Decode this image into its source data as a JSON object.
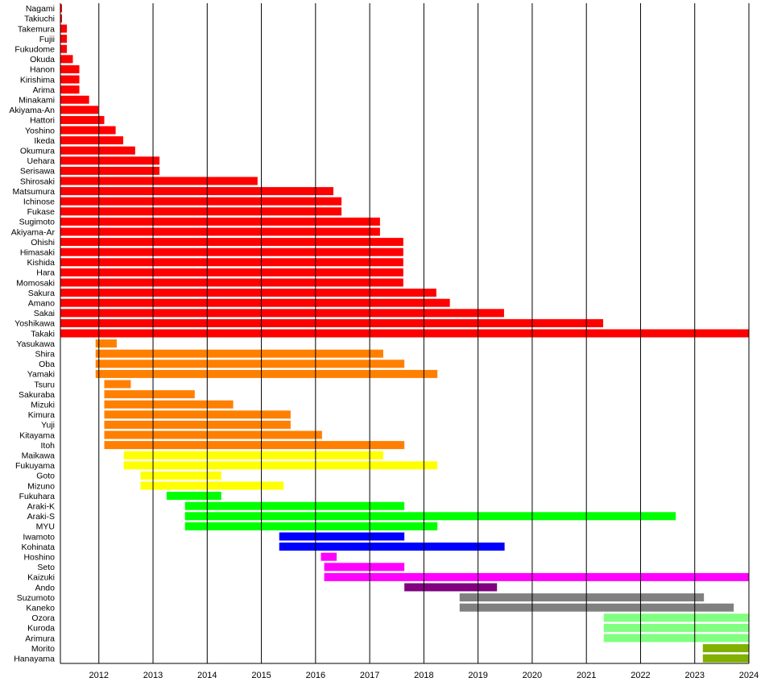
{
  "chart_data": {
    "type": "bar",
    "orientation": "horizontal-timeline",
    "title": "",
    "xlabel": "",
    "ylabel": "",
    "xlim": [
      2011.29,
      2024.0
    ],
    "xticks": [
      "2012",
      "2013",
      "2014",
      "2015",
      "2016",
      "2017",
      "2018",
      "2019",
      "2020",
      "2021",
      "2022",
      "2023",
      "2024"
    ],
    "grid": "vertical lines at each year",
    "legend": "none",
    "groups": [
      {
        "color": "#ff0000",
        "rows": [
          {
            "label": "Nagami",
            "start": 2011.29,
            "end": 2011.32
          },
          {
            "label": "Takiuchi",
            "start": 2011.29,
            "end": 2011.32
          },
          {
            "label": "Takemura",
            "start": 2011.29,
            "end": 2011.41
          },
          {
            "label": "Fujii",
            "start": 2011.29,
            "end": 2011.41
          },
          {
            "label": "Fukudome",
            "start": 2011.29,
            "end": 2011.41
          },
          {
            "label": "Okuda",
            "start": 2011.29,
            "end": 2011.52
          },
          {
            "label": "Hanon",
            "start": 2011.29,
            "end": 2011.64
          },
          {
            "label": "Kirishima",
            "start": 2011.29,
            "end": 2011.64
          },
          {
            "label": "Arima",
            "start": 2011.29,
            "end": 2011.64
          },
          {
            "label": "Minakami",
            "start": 2011.29,
            "end": 2011.82
          },
          {
            "label": "Akiyama-An",
            "start": 2011.29,
            "end": 2011.99
          },
          {
            "label": "Hattori",
            "start": 2011.29,
            "end": 2012.1
          },
          {
            "label": "Yoshino",
            "start": 2011.29,
            "end": 2012.31
          },
          {
            "label": "Ikeda",
            "start": 2011.29,
            "end": 2012.45
          },
          {
            "label": "Okumura",
            "start": 2011.29,
            "end": 2012.67
          },
          {
            "label": "Uehara",
            "start": 2011.29,
            "end": 2013.12
          },
          {
            "label": "Serisawa",
            "start": 2011.29,
            "end": 2013.12
          },
          {
            "label": "Shirosaki",
            "start": 2011.29,
            "end": 2014.93
          },
          {
            "label": "Matsumura",
            "start": 2011.29,
            "end": 2016.33
          },
          {
            "label": "Ichinose",
            "start": 2011.29,
            "end": 2016.48
          },
          {
            "label": "Fukase",
            "start": 2011.29,
            "end": 2016.48
          },
          {
            "label": "Sugimoto",
            "start": 2011.29,
            "end": 2017.19
          },
          {
            "label": "Akiyama-Ar",
            "start": 2011.29,
            "end": 2017.19
          },
          {
            "label": "Ohishi",
            "start": 2011.29,
            "end": 2017.62
          },
          {
            "label": "Himasaki",
            "start": 2011.29,
            "end": 2017.62
          },
          {
            "label": "Kishida",
            "start": 2011.29,
            "end": 2017.62
          },
          {
            "label": "Hara",
            "start": 2011.29,
            "end": 2017.62
          },
          {
            "label": "Momosaki",
            "start": 2011.29,
            "end": 2017.62
          },
          {
            "label": "Sakura",
            "start": 2011.29,
            "end": 2018.23
          },
          {
            "label": "Amano",
            "start": 2011.29,
            "end": 2018.48
          },
          {
            "label": "Sakai",
            "start": 2011.29,
            "end": 2019.48
          },
          {
            "label": "Yoshikawa",
            "start": 2011.29,
            "end": 2021.31
          },
          {
            "label": "Takaki",
            "start": 2011.29,
            "end": 2024.0
          }
        ]
      },
      {
        "color": "#ff8000",
        "rows": [
          {
            "label": "Yasukawa",
            "start": 2011.94,
            "end": 2012.33
          },
          {
            "label": "Shira",
            "start": 2011.94,
            "end": 2017.25
          },
          {
            "label": "Oba",
            "start": 2011.94,
            "end": 2017.64
          },
          {
            "label": "Yamaki",
            "start": 2011.94,
            "end": 2018.25
          },
          {
            "label": "Tsuru",
            "start": 2012.1,
            "end": 2012.59
          },
          {
            "label": "Sakuraba",
            "start": 2012.1,
            "end": 2013.77
          },
          {
            "label": "Mizuki",
            "start": 2012.1,
            "end": 2014.48
          },
          {
            "label": "Kimura",
            "start": 2012.1,
            "end": 2015.54
          },
          {
            "label": "Yuji",
            "start": 2012.1,
            "end": 2015.54
          },
          {
            "label": "Kitayama",
            "start": 2012.1,
            "end": 2016.12
          },
          {
            "label": "Itoh",
            "start": 2012.1,
            "end": 2017.64
          }
        ]
      },
      {
        "color": "#ffff00",
        "rows": [
          {
            "label": "Maikawa",
            "start": 2012.46,
            "end": 2017.25
          },
          {
            "label": "Fukuyama",
            "start": 2012.46,
            "end": 2018.25
          },
          {
            "label": "Goto",
            "start": 2012.77,
            "end": 2014.26
          },
          {
            "label": "Mizuno",
            "start": 2012.77,
            "end": 2015.41
          }
        ]
      },
      {
        "color": "#00ff00",
        "rows": [
          {
            "label": "Fukuhara",
            "start": 2013.25,
            "end": 2014.26
          },
          {
            "label": "Araki-K",
            "start": 2013.59,
            "end": 2017.64
          },
          {
            "label": "Araki-S",
            "start": 2013.59,
            "end": 2022.65
          },
          {
            "label": "MYU",
            "start": 2013.59,
            "end": 2018.25
          }
        ]
      },
      {
        "color": "#0000ff",
        "rows": [
          {
            "label": "Iwamoto",
            "start": 2015.33,
            "end": 2017.64
          },
          {
            "label": "Kohinata",
            "start": 2015.33,
            "end": 2019.49
          }
        ]
      },
      {
        "color": "#ff00ff",
        "rows": [
          {
            "label": "Hoshino",
            "start": 2016.1,
            "end": 2016.39
          },
          {
            "label": "Seto",
            "start": 2016.16,
            "end": 2017.64
          },
          {
            "label": "Kaizuki",
            "start": 2016.16,
            "end": 2024.0
          }
        ]
      },
      {
        "color": "#800080",
        "rows": [
          {
            "label": "Ando",
            "start": 2017.64,
            "end": 2019.35
          }
        ]
      },
      {
        "color": "#808080",
        "rows": [
          {
            "label": "Suzumoto",
            "start": 2018.66,
            "end": 2023.17
          },
          {
            "label": "Kaneko",
            "start": 2018.66,
            "end": 2023.72
          }
        ]
      },
      {
        "color": "#80ff80",
        "rows": [
          {
            "label": "Ozora",
            "start": 2021.32,
            "end": 2024.0
          },
          {
            "label": "Kuroda",
            "start": 2021.32,
            "end": 2024.0
          },
          {
            "label": "Arimura",
            "start": 2021.32,
            "end": 2024.0
          }
        ]
      },
      {
        "color": "#80b000",
        "rows": [
          {
            "label": "Morito",
            "start": 2023.15,
            "end": 2024.0
          },
          {
            "label": "Hanayama",
            "start": 2023.15,
            "end": 2024.0
          }
        ]
      }
    ]
  }
}
